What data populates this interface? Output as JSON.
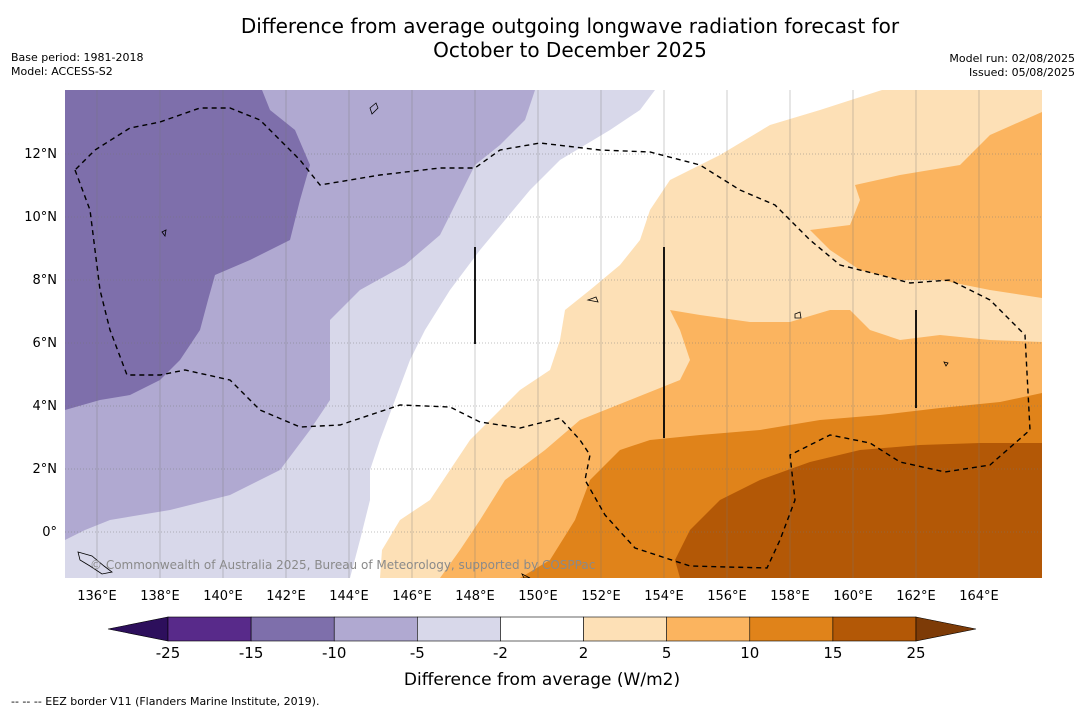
{
  "title_line1": "Difference from average outgoing longwave radiation forecast for",
  "title_line2": "October to December 2025",
  "meta_left": [
    "Base period: 1981-2018",
    "Model: ACCESS-S2"
  ],
  "meta_right": [
    "Model run: 02/08/2025",
    "Issued: 05/08/2025"
  ],
  "copyright": "© Commonwealth of Australia 2025, Bureau of Meteorology, supported by COSPPac",
  "footnote": "-- -- -- EEZ border V11 (Flanders Marine Institute, 2019).",
  "map": {
    "lon_labels": [
      "136°E",
      "138°E",
      "140°E",
      "142°E",
      "144°E",
      "146°E",
      "148°E",
      "150°E",
      "152°E",
      "154°E",
      "156°E",
      "158°E",
      "160°E",
      "162°E",
      "164°E"
    ],
    "lat_labels": [
      "12°N",
      "10°N",
      "8°N",
      "6°N",
      "4°N",
      "2°N",
      "0°"
    ],
    "lon_range": [
      135,
      166
    ],
    "lat_range": [
      -1.5,
      14
    ]
  },
  "colorbar": {
    "label": "Difference from average (W/m2)",
    "ticks": [
      "-25",
      "-15",
      "-10",
      "-5",
      "-2",
      "2",
      "5",
      "10",
      "15",
      "25"
    ],
    "colors": [
      "#2d0f5c",
      "#582a8a",
      "#7e6fab",
      "#b0a9d1",
      "#d8d8ea",
      "#ffffff",
      "#fde0b6",
      "#fbb45f",
      "#e0831a",
      "#b35806",
      "#7d3b07"
    ]
  }
}
